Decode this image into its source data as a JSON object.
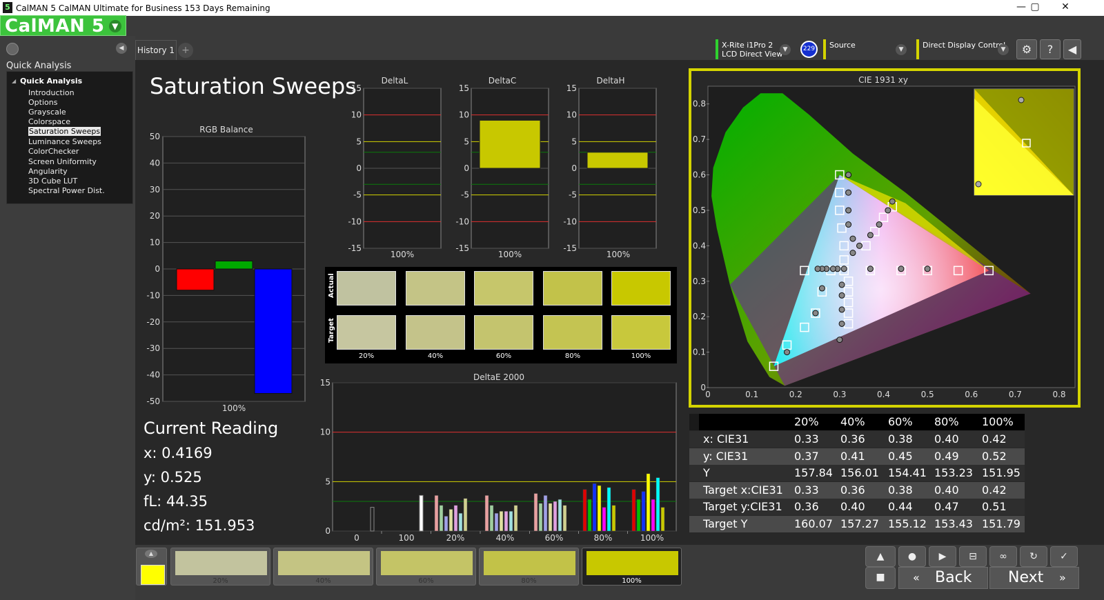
{
  "window": {
    "title": "CalMAN 5 CalMAN Ultimate for Business 153 Days Remaining",
    "icon_text": "5"
  },
  "logo": {
    "text": "CalMAN 5"
  },
  "sidebar": {
    "header": "Quick Analysis",
    "tree_root": "Quick Analysis",
    "items": [
      "Introduction",
      "Options",
      "Grayscale",
      "Colorspace",
      "Saturation Sweeps",
      "Luminance Sweeps",
      "ColorChecker",
      "Screen Uniformity",
      "Angularity",
      "3D Cube LUT",
      "Spectral Power Dist."
    ],
    "selected": "Saturation Sweeps"
  },
  "tabs": {
    "history": "History 1",
    "add": "+"
  },
  "controls": {
    "meter_line1": "X-Rite i1Pro 2",
    "meter_line2": "LCD Direct View",
    "meter_badge": "229",
    "source": "Source",
    "display": "Direct Display Control"
  },
  "page_title": "Saturation Sweeps",
  "rgb_balance": {
    "title": "RGB Balance",
    "y_ticks": [
      "50",
      "40",
      "30",
      "20",
      "10",
      "0",
      "-10",
      "-20",
      "-30",
      "-40",
      "-50"
    ],
    "xlabel": "100%",
    "values": {
      "red": -8,
      "green": 3,
      "blue": -47
    },
    "colors": {
      "red": "#ff0000",
      "green": "#00aa00",
      "blue": "#0000ff"
    }
  },
  "delta_charts": [
    {
      "title": "DeltaL",
      "value": 0,
      "xlabel": "100%"
    },
    {
      "title": "DeltaC",
      "value": 9,
      "xlabel": "100%"
    },
    {
      "title": "DeltaH",
      "value": 3,
      "xlabel": "100%"
    }
  ],
  "delta_y_ticks": [
    "15",
    "10",
    "5",
    "0",
    "-5",
    "-10",
    "-15"
  ],
  "swatches": {
    "row_actual": "Actual",
    "row_target": "Target",
    "labels": [
      "20%",
      "40%",
      "60%",
      "80%",
      "100%"
    ],
    "actual_colors": [
      "#c0c2a0",
      "#c4c486",
      "#c6c66b",
      "#c2c24a",
      "#c8c800"
    ],
    "target_colors": [
      "#c6c6a0",
      "#c4c38a",
      "#c4c46e",
      "#c4c452",
      "#c8c83c"
    ]
  },
  "deltae": {
    "title": "DeltaE 2000",
    "y_ticks": [
      "15",
      "10",
      "5",
      "0"
    ],
    "x_labels": [
      "0",
      "100",
      "20%",
      "40%",
      "60%",
      "80%",
      "100%"
    ]
  },
  "current_reading": {
    "title": "Current Reading",
    "x": "x: 0.4169",
    "y": "y: 0.525",
    "fL": "fL: 44.35",
    "cdm2": "cd/m²: 151.953"
  },
  "cie": {
    "title": "CIE 1931 xy",
    "y_ticks": [
      "0.8",
      "0.7",
      "0.6",
      "0.5",
      "0.4",
      "0.3",
      "0.2",
      "0.1",
      "0"
    ],
    "x_ticks": [
      "0",
      "0.1",
      "0.2",
      "0.3",
      "0.4",
      "0.5",
      "0.6",
      "0.7",
      "0.8"
    ]
  },
  "table": {
    "headers": [
      "20%",
      "40%",
      "60%",
      "80%",
      "100%"
    ],
    "rows": [
      {
        "label": "x: CIE31",
        "values": [
          "0.33",
          "0.36",
          "0.38",
          "0.40",
          "0.42"
        ]
      },
      {
        "label": "y: CIE31",
        "values": [
          "0.37",
          "0.41",
          "0.45",
          "0.49",
          "0.52"
        ]
      },
      {
        "label": "Y",
        "values": [
          "157.84",
          "156.01",
          "154.41",
          "153.23",
          "151.95"
        ]
      },
      {
        "label": "Target x:CIE31",
        "values": [
          "0.33",
          "0.36",
          "0.38",
          "0.40",
          "0.42"
        ]
      },
      {
        "label": "Target y:CIE31",
        "values": [
          "0.36",
          "0.40",
          "0.44",
          "0.47",
          "0.51"
        ]
      },
      {
        "label": "Target Y",
        "values": [
          "160.07",
          "157.27",
          "155.12",
          "153.43",
          "151.79"
        ]
      }
    ]
  },
  "bottom": {
    "patches": [
      "20%",
      "40%",
      "60%",
      "80%",
      "100%"
    ],
    "patch_colors": [
      "#c2c39e",
      "#c4c483",
      "#c4c466",
      "#c2c248",
      "#c8c800"
    ],
    "current_color": "#ffff00",
    "back": "Back",
    "next": "Next"
  }
}
